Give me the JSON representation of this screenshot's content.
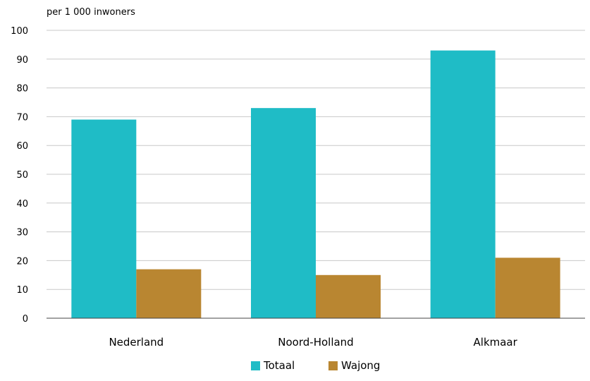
{
  "chart_data": {
    "type": "bar",
    "ylabel": "per 1 000 inwoners",
    "categories": [
      "Nederland",
      "Noord-Holland",
      "Alkmaar"
    ],
    "series": [
      {
        "name": "Totaal",
        "values": [
          69,
          73,
          93
        ],
        "color": "#1fbcc6"
      },
      {
        "name": "Wajong",
        "values": [
          17,
          15,
          21
        ],
        "color": "#b98631"
      }
    ],
    "ylim": [
      0,
      100
    ],
    "yticks": [
      0,
      10,
      20,
      30,
      40,
      50,
      60,
      70,
      80,
      90,
      100
    ],
    "grid": true,
    "legend": "bottom"
  }
}
